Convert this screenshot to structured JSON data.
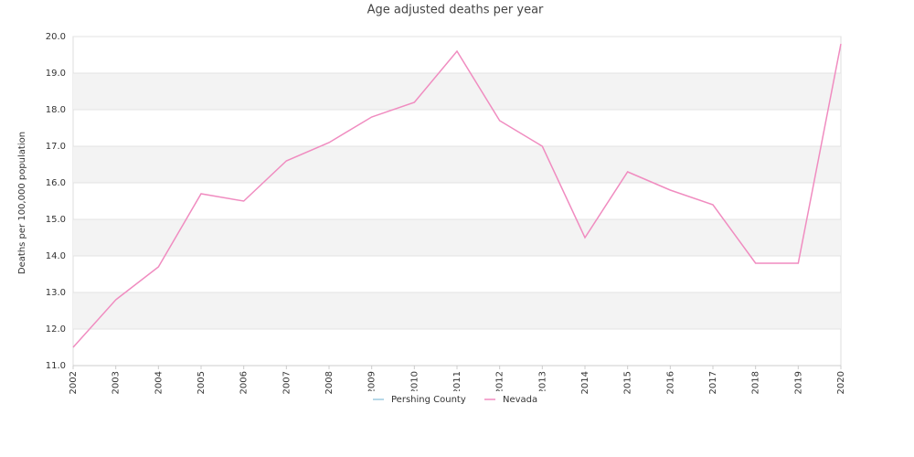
{
  "chart_data": {
    "type": "line",
    "title": "Age adjusted deaths per year",
    "ylabel": "Deaths per 100,000 population",
    "categories": [
      "2002",
      "2003",
      "2004",
      "2005",
      "2006",
      "2007",
      "2008",
      "2009",
      "2010",
      "2011",
      "2012",
      "2013",
      "2014",
      "2015",
      "2016",
      "2017",
      "2018",
      "2019",
      "2020"
    ],
    "series": [
      {
        "name": "Pershing County",
        "color": "#9ecae1",
        "values": [
          null,
          null,
          null,
          null,
          null,
          null,
          null,
          null,
          null,
          null,
          null,
          null,
          null,
          null,
          null,
          null,
          null,
          null,
          null
        ]
      },
      {
        "name": "Nevada",
        "color": "#f08cc0",
        "values": [
          11.5,
          12.8,
          13.7,
          15.7,
          15.5,
          16.6,
          17.1,
          17.8,
          18.2,
          19.6,
          17.7,
          17.0,
          14.5,
          16.3,
          15.8,
          15.4,
          13.8,
          13.8,
          19.8
        ]
      }
    ],
    "ylim": [
      11,
      20
    ],
    "yticks": [
      {
        "value": 11,
        "label": "11.0"
      },
      {
        "value": 12,
        "label": "12.0"
      },
      {
        "value": 13,
        "label": "13.0"
      },
      {
        "value": 14,
        "label": "14.0"
      },
      {
        "value": 15,
        "label": "15.0"
      },
      {
        "value": 16,
        "label": "16.0"
      },
      {
        "value": 17,
        "label": "17.0"
      },
      {
        "value": 18,
        "label": "18.0"
      },
      {
        "value": 19,
        "label": "19.0"
      },
      {
        "value": 20,
        "label": "20.0"
      }
    ],
    "grid": true,
    "legend": "bottom"
  }
}
